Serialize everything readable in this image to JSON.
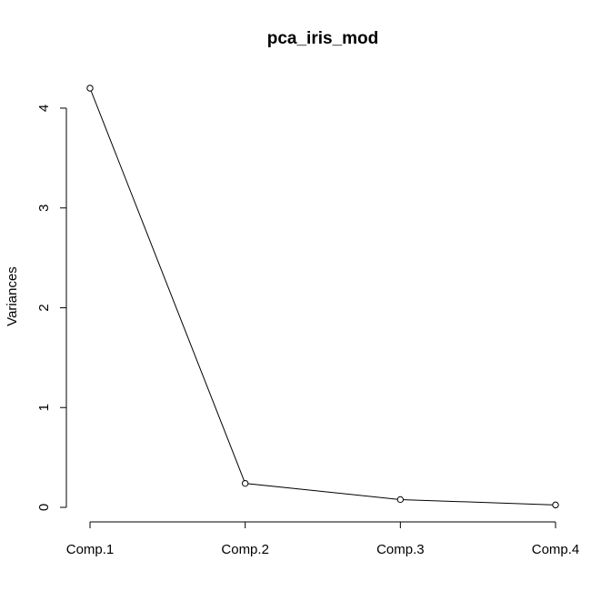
{
  "chart_data": {
    "type": "line",
    "title": "pca_iris_mod",
    "xlabel": "",
    "ylabel": "Variances",
    "categories": [
      "Comp.1",
      "Comp.2",
      "Comp.3",
      "Comp.4"
    ],
    "values": [
      4.2,
      0.24,
      0.078,
      0.024
    ],
    "ylim": [
      0,
      4.2
    ],
    "yticks": [
      "0",
      "1",
      "2",
      "3",
      "4"
    ],
    "grid": false,
    "marker": "open-circle"
  }
}
